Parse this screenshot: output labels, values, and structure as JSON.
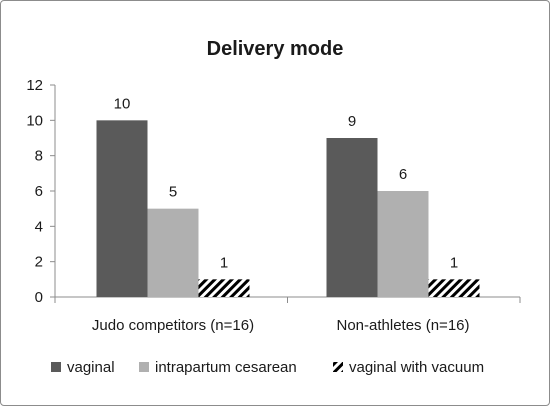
{
  "chart_data": {
    "type": "bar",
    "title": "Delivery mode",
    "xlabel": "",
    "ylabel": "",
    "categories": [
      "Judo competitors (n=16)",
      "Non-athletes (n=16)"
    ],
    "series": [
      {
        "name": "vaginal",
        "values": [
          10,
          9
        ],
        "color": "#5a5a5a",
        "pattern": "solid"
      },
      {
        "name": "intrapartum cesarean",
        "values": [
          5,
          6
        ],
        "color": "#b0b0b0",
        "pattern": "solid"
      },
      {
        "name": "vaginal with vacuum",
        "values": [
          1,
          1
        ],
        "color": "#000000",
        "pattern": "diagonal-stripes"
      }
    ],
    "ylim": [
      0,
      12
    ],
    "yticks": [
      0,
      2,
      4,
      6,
      8,
      10,
      12
    ],
    "grid": false,
    "legend": "bottom",
    "data_labels": true
  }
}
